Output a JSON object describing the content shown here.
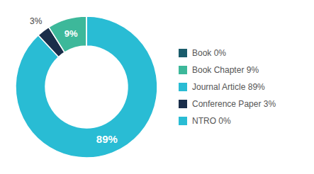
{
  "chart_data": {
    "type": "pie",
    "values": [
      89,
      3,
      0.01,
      9,
      0.01
    ],
    "colors": [
      "#29bcd4",
      "#1a2e4a",
      "#1a5c6b",
      "#3db89a",
      "#29bcd4"
    ],
    "data_labels": true,
    "value_labels": [
      "89%",
      "3%",
      null,
      "9%",
      null
    ],
    "legend": "right",
    "legend_entries": [
      {
        "label": "Book 0%",
        "color": "#1a5c6b"
      },
      {
        "label": "Book Chapter 9%",
        "color": "#3db89a"
      },
      {
        "label": "Journal Article 89%",
        "color": "#29bcd4"
      },
      {
        "label": "Conference Paper 3%",
        "color": "#1a2e4a"
      },
      {
        "label": "NTRO 0%",
        "color": "#29bcd4"
      }
    ]
  }
}
